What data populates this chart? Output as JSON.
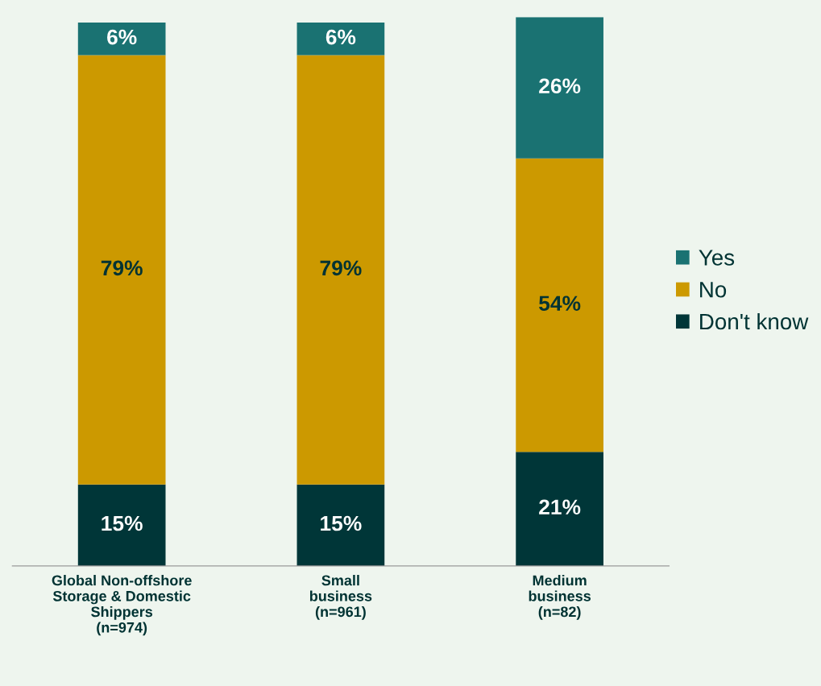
{
  "chart_data": {
    "type": "bar",
    "stacked": true,
    "legend": "right",
    "categories": [
      "Global Non-offshore\nStorage & Domestic\nShippers\n(n=974)",
      "Small\nbusiness\n(n=961)",
      "Medium\nbusiness\n(n=82)"
    ],
    "series": [
      {
        "name": "Don't know",
        "color": "#003638",
        "values": [
          15,
          15,
          21
        ],
        "value_labels": [
          "15%",
          "15%",
          "21%"
        ]
      },
      {
        "name": "No",
        "color": "#cc9900",
        "values": [
          79,
          79,
          54
        ],
        "value_labels": [
          "79%",
          "79%",
          "54%"
        ]
      },
      {
        "name": "Yes",
        "color": "#1a7272",
        "values": [
          6,
          6,
          26
        ],
        "value_labels": [
          "6%",
          "6%",
          "26%"
        ]
      }
    ]
  }
}
